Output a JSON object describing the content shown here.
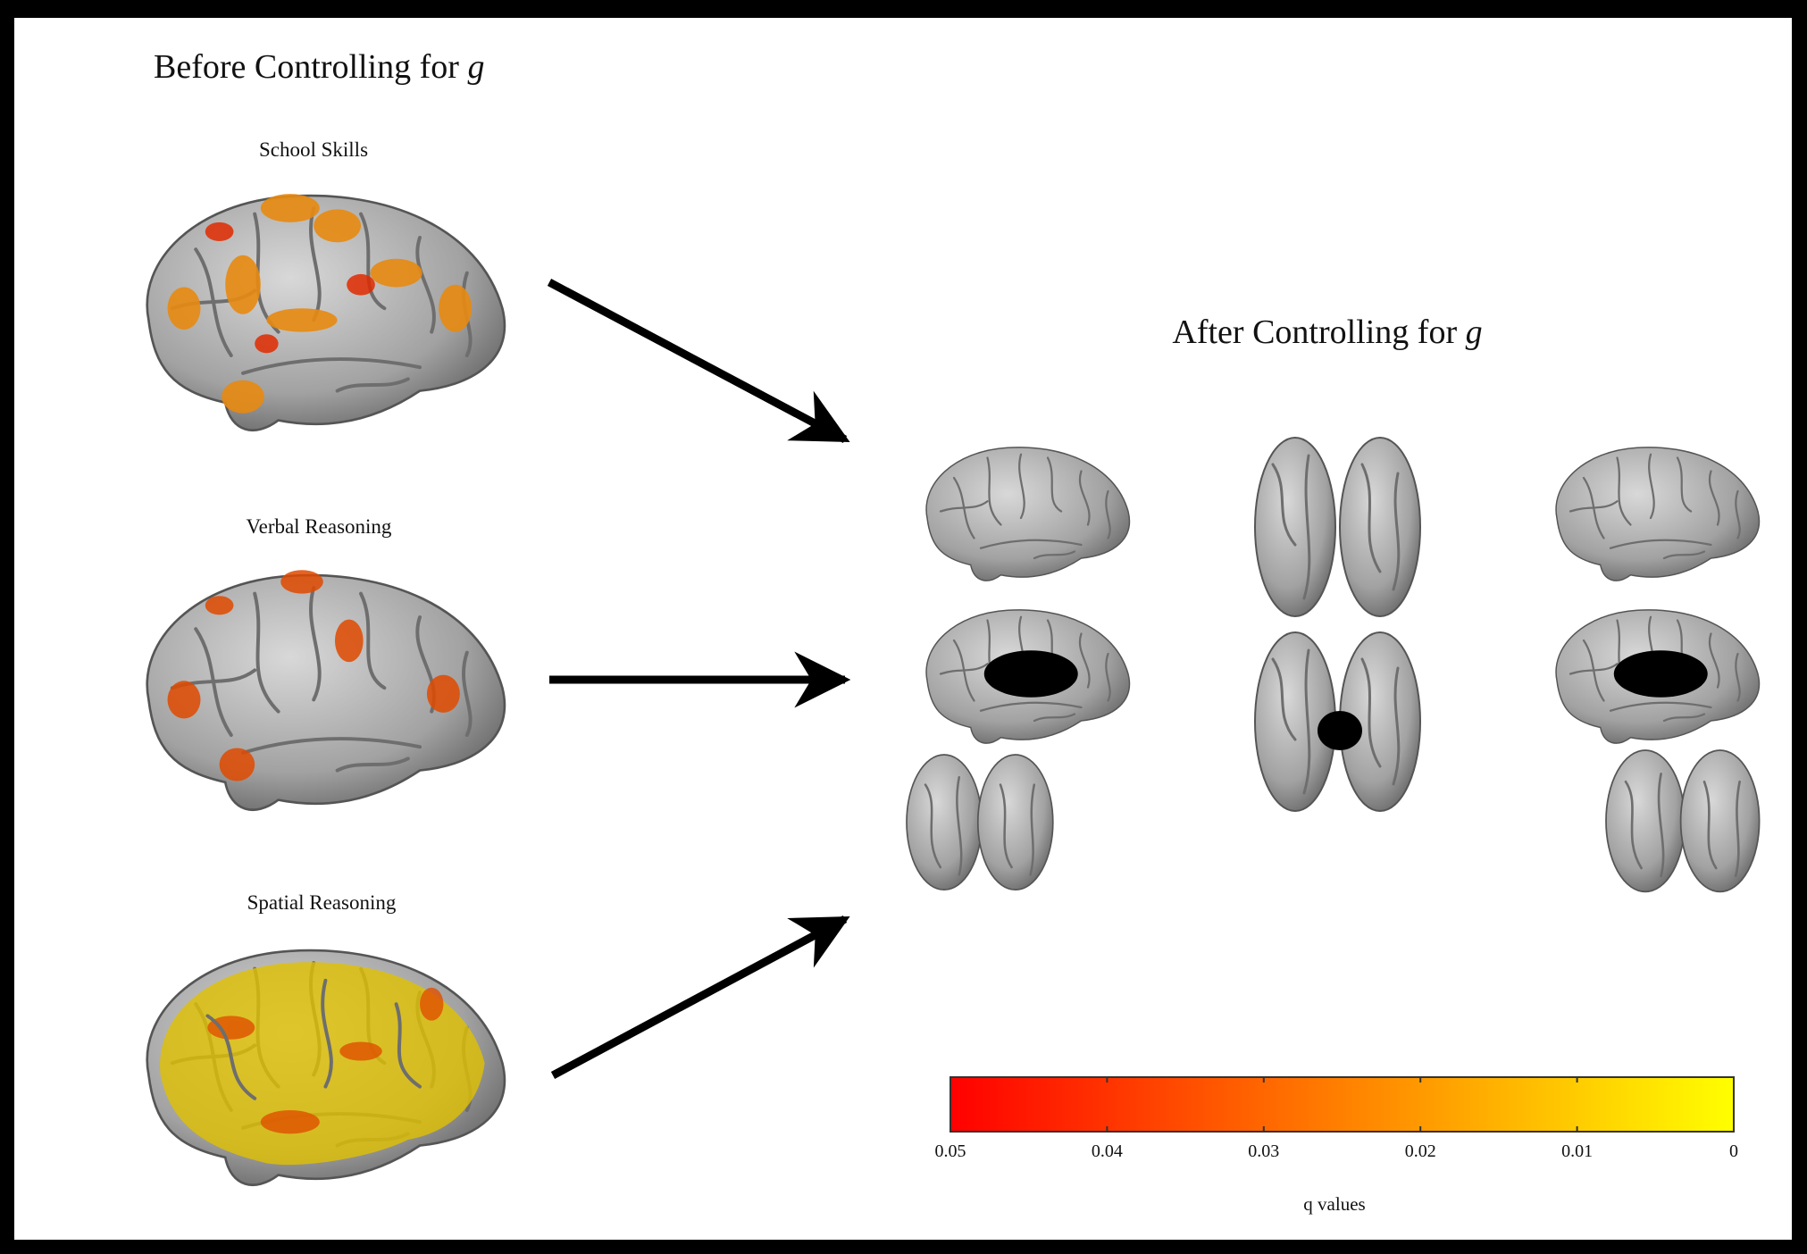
{
  "left_panel": {
    "title": {
      "text": "Before Controlling for",
      "variable": "g"
    },
    "brains": [
      {
        "label": "School Skills"
      },
      {
        "label": "Verbal Reasoning"
      },
      {
        "label": "Spatial Reasoning"
      }
    ]
  },
  "right_panel": {
    "title": {
      "text": "After Controlling for",
      "variable": "g"
    }
  },
  "colorbar": {
    "lim": [
      0.05,
      0
    ],
    "ticks": [
      0.05,
      0.04,
      0.03,
      0.02,
      0.01,
      0
    ],
    "label": "q values",
    "colors": [
      "#ff0000",
      "#ff8000",
      "#ffff00"
    ]
  }
}
